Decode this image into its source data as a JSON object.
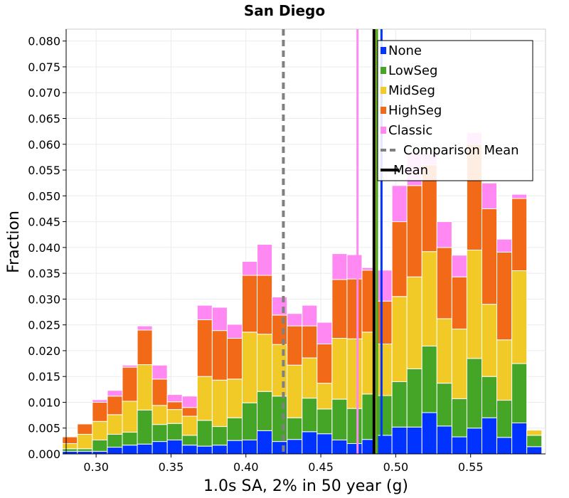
{
  "chart_data": {
    "type": "bar",
    "stacked": true,
    "title": "San Diego",
    "xlabel": "1.0s SA, 2% in 50 year (g)",
    "ylabel": "Fraction",
    "xlim": [
      0.28,
      0.6
    ],
    "ylim": [
      0,
      0.0823
    ],
    "bin_width": 0.01,
    "x_ticks": [
      0.3,
      0.35,
      0.4,
      0.45,
      0.5,
      0.55
    ],
    "x_tick_labels": [
      "0.30",
      "0.35",
      "0.40",
      "0.45",
      "0.50",
      "0.55"
    ],
    "y_ticks": [
      0,
      0.005,
      0.01,
      0.015,
      0.02,
      0.025,
      0.03,
      0.035,
      0.04,
      0.045,
      0.05,
      0.055,
      0.06,
      0.065,
      0.07,
      0.075,
      0.08
    ],
    "y_tick_labels": [
      "0.000",
      "0.005",
      "0.010",
      "0.015",
      "0.020",
      "0.025",
      "0.030",
      "0.035",
      "0.040",
      "0.045",
      "0.050",
      "0.055",
      "0.060",
      "0.065",
      "0.070",
      "0.075",
      "0.080"
    ],
    "legend_position": "top-right",
    "x": [
      0.2825,
      0.2925,
      0.3025,
      0.3125,
      0.3225,
      0.3325,
      0.3425,
      0.3525,
      0.3625,
      0.3725,
      0.3825,
      0.3925,
      0.4025,
      0.4125,
      0.4225,
      0.4325,
      0.4425,
      0.4525,
      0.4625,
      0.4725,
      0.4825,
      0.4925,
      0.5025,
      0.5125,
      0.5225,
      0.5325,
      0.5425,
      0.5525,
      0.5625,
      0.5725,
      0.5825,
      0.5925
    ],
    "series": [
      {
        "name": "None",
        "color": "#0033ff",
        "values": [
          0.0005,
          0.0005,
          0.0005,
          0.0013,
          0.0017,
          0.0019,
          0.0024,
          0.0027,
          0.0017,
          0.0015,
          0.0017,
          0.0026,
          0.0027,
          0.0045,
          0.0024,
          0.0028,
          0.0043,
          0.0039,
          0.0027,
          0.002,
          0.0028,
          0.0036,
          0.0052,
          0.0052,
          0.008,
          0.0054,
          0.0033,
          0.005,
          0.007,
          0.0032,
          0.006,
          0.0014
        ]
      },
      {
        "name": "LowSeg",
        "color": "#44a526",
        "values": [
          0.0005,
          0.0005,
          0.0022,
          0.0025,
          0.0025,
          0.0066,
          0.0033,
          0.0032,
          0.0019,
          0.005,
          0.0036,
          0.0044,
          0.0072,
          0.0076,
          0.0088,
          0.0042,
          0.0065,
          0.0048,
          0.0079,
          0.0068,
          0.0088,
          0.0077,
          0.0088,
          0.0113,
          0.0129,
          0.0083,
          0.0074,
          0.0135,
          0.008,
          0.0072,
          0.0115,
          0.0022
        ]
      },
      {
        "name": "MidSeg",
        "color": "#f2ca27",
        "values": [
          0.001,
          0.0028,
          0.0036,
          0.0038,
          0.006,
          0.0088,
          0.0037,
          0.0027,
          0.0037,
          0.0085,
          0.009,
          0.0075,
          0.0137,
          0.0111,
          0.01,
          0.0102,
          0.0078,
          0.005,
          0.0118,
          0.0135,
          0.012,
          0.01,
          0.0165,
          0.0178,
          0.0183,
          0.0125,
          0.0135,
          0.021,
          0.014,
          0.0117,
          0.018,
          0.001
        ]
      },
      {
        "name": "HighSeg",
        "color": "#f26a18",
        "values": [
          0.0013,
          0.002,
          0.0037,
          0.0036,
          0.0066,
          0.0067,
          0.0051,
          0.0015,
          0.0017,
          0.011,
          0.0096,
          0.0079,
          0.011,
          0.0114,
          0.0057,
          0.0076,
          0.0062,
          0.0076,
          0.0114,
          0.0116,
          0.012,
          0.0083,
          0.0145,
          0.0177,
          0.0168,
          0.0138,
          0.0101,
          0.0205,
          0.0185,
          0.017,
          0.014,
          0.0
        ]
      },
      {
        "name": "Classic",
        "color": "#ff88f2",
        "values": [
          0.0,
          0.0,
          0.0005,
          0.0011,
          0.0004,
          0.0008,
          0.0027,
          0.0014,
          0.0022,
          0.0028,
          0.0045,
          0.0027,
          0.0027,
          0.006,
          0.0035,
          0.0024,
          0.004,
          0.0042,
          0.005,
          0.0047,
          0.0005,
          0.006,
          0.007,
          0.0063,
          0.0023,
          0.005,
          0.0042,
          0.0023,
          0.005,
          0.0025,
          0.0008,
          0.0
        ]
      }
    ],
    "vlines": [
      {
        "name": "Comparison Mean",
        "x": 0.425,
        "color": "#808080",
        "dash": true
      },
      {
        "name": "Classic mean",
        "x": 0.4745,
        "color": "#ff88f2",
        "dash": false
      },
      {
        "name": "HighSeg mean",
        "x": 0.4855,
        "color": "#f26a18",
        "dash": false
      },
      {
        "name": "MidSeg mean",
        "x": 0.4868,
        "color": "#f2ca27",
        "dash": false
      },
      {
        "name": "LowSeg mean",
        "x": 0.4875,
        "color": "#44a526",
        "dash": false
      },
      {
        "name": "None mean",
        "x": 0.4905,
        "color": "#0033ff",
        "dash": false
      },
      {
        "name": "Mean",
        "x": 0.4855,
        "color": "#000000",
        "dash": false
      }
    ],
    "legend": [
      {
        "label": "None",
        "color": "#0033ff",
        "kind": "box"
      },
      {
        "label": "LowSeg",
        "color": "#44a526",
        "kind": "box"
      },
      {
        "label": "MidSeg",
        "color": "#f2ca27",
        "kind": "box"
      },
      {
        "label": "HighSeg",
        "color": "#f26a18",
        "kind": "box"
      },
      {
        "label": "Classic",
        "color": "#ff88f2",
        "kind": "box"
      },
      {
        "label": "Comparison Mean",
        "color": "#808080",
        "kind": "dash"
      },
      {
        "label": "Mean",
        "color": "#000000",
        "kind": "line"
      }
    ]
  }
}
